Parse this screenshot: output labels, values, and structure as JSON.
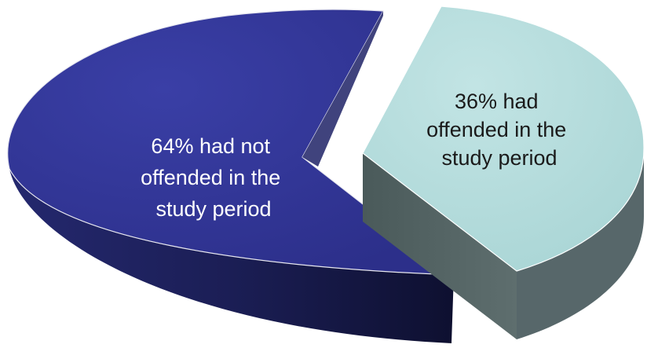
{
  "chart_data": {
    "type": "pie",
    "title": "",
    "slices": [
      {
        "value": 64,
        "label_lines": [
          "64% had not",
          "offended in the",
          "study period"
        ],
        "color": "#2f3393",
        "text_color": "#ffffff",
        "exploded": false
      },
      {
        "value": 36,
        "label_lines": [
          "36% had",
          "offended in the",
          "study period"
        ],
        "color": "#b3dcdc",
        "text_color": "#1a1a1a",
        "exploded": true
      }
    ]
  }
}
